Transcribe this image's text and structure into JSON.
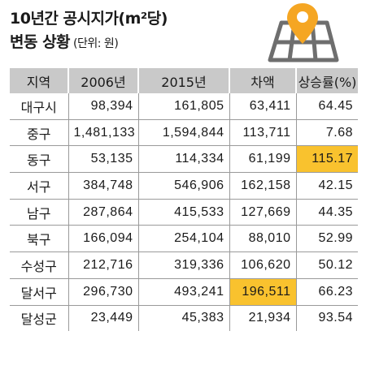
{
  "header": {
    "title_line1": "10년간 공시지가(m²당)",
    "title_line2": "변동 상황",
    "unit": "(단위: 원)"
  },
  "icon": "map-location-pin-icon",
  "colors": {
    "header_bg": "#c9c9c9",
    "highlight": "#f9c22e",
    "pin": "#f5a623",
    "rule": "#9a9a9a"
  },
  "chart_data": {
    "type": "table",
    "columns": [
      "지역",
      "2006년",
      "2015년",
      "차액",
      "상승률(%)"
    ],
    "rows": [
      [
        "대구시",
        "98,394",
        "161,805",
        "63,411",
        "64.45"
      ],
      [
        "중구",
        "1,481,133",
        "1,594,844",
        "113,711",
        "7.68"
      ],
      [
        "동구",
        "53,135",
        "114,334",
        "61,199",
        "115.17"
      ],
      [
        "서구",
        "384,748",
        "546,906",
        "162,158",
        "42.15"
      ],
      [
        "남구",
        "287,864",
        "415,533",
        "127,669",
        "44.35"
      ],
      [
        "북구",
        "166,094",
        "254,104",
        "88,010",
        "52.99"
      ],
      [
        "수성구",
        "212,716",
        "319,336",
        "106,620",
        "50.12"
      ],
      [
        "달서구",
        "296,730",
        "493,241",
        "196,511",
        "66.23"
      ],
      [
        "달성군",
        "23,449",
        "45,383",
        "21,934",
        "93.54"
      ]
    ],
    "highlighted_cells": [
      {
        "row": "동구",
        "column": "상승률(%)",
        "value": "115.17"
      },
      {
        "row": "달서구",
        "column": "차액",
        "value": "196,511"
      }
    ]
  }
}
